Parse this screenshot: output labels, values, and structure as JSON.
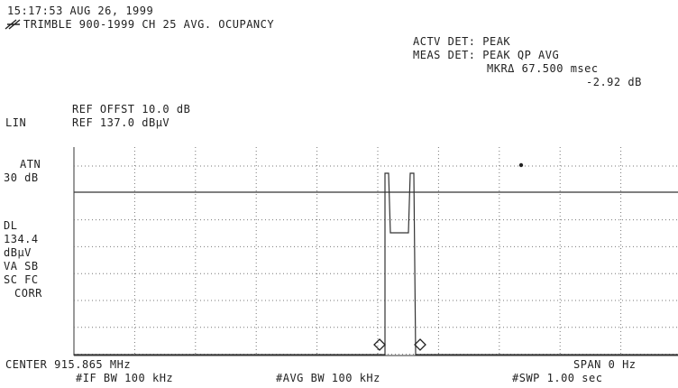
{
  "header": {
    "timestamp": "15:17:53 AUG 26, 1999",
    "title": "TRIMBLE 900-1999 CH 25 AVG. OCUPANCY"
  },
  "detector": {
    "actv": "ACTV DET: PEAK",
    "meas": "MEAS DET: PEAK QP AVG",
    "marker": "MKRΔ 67.500 msec",
    "marker_level": "-2.92 dB"
  },
  "reference": {
    "offset": "REF OFFST 10.0 dB",
    "scale": "LIN",
    "level": "REF 137.0 dBμV"
  },
  "side_labels": {
    "atn": "ATN",
    "atn_value": "30 dB",
    "dl": "DL",
    "dl_value": "134.4",
    "dl_unit": "dBμV",
    "va": "VA SB",
    "sc": "SC FC",
    "corr": "CORR"
  },
  "footer": {
    "center": "CENTER 915.865 MHz",
    "span": "SPAN 0 Hz",
    "if_bw": "#IF BW 100 kHz",
    "avg_bw": "#AVG BW 100 kHz",
    "swp": "#SWP 1.00 sec"
  }
}
